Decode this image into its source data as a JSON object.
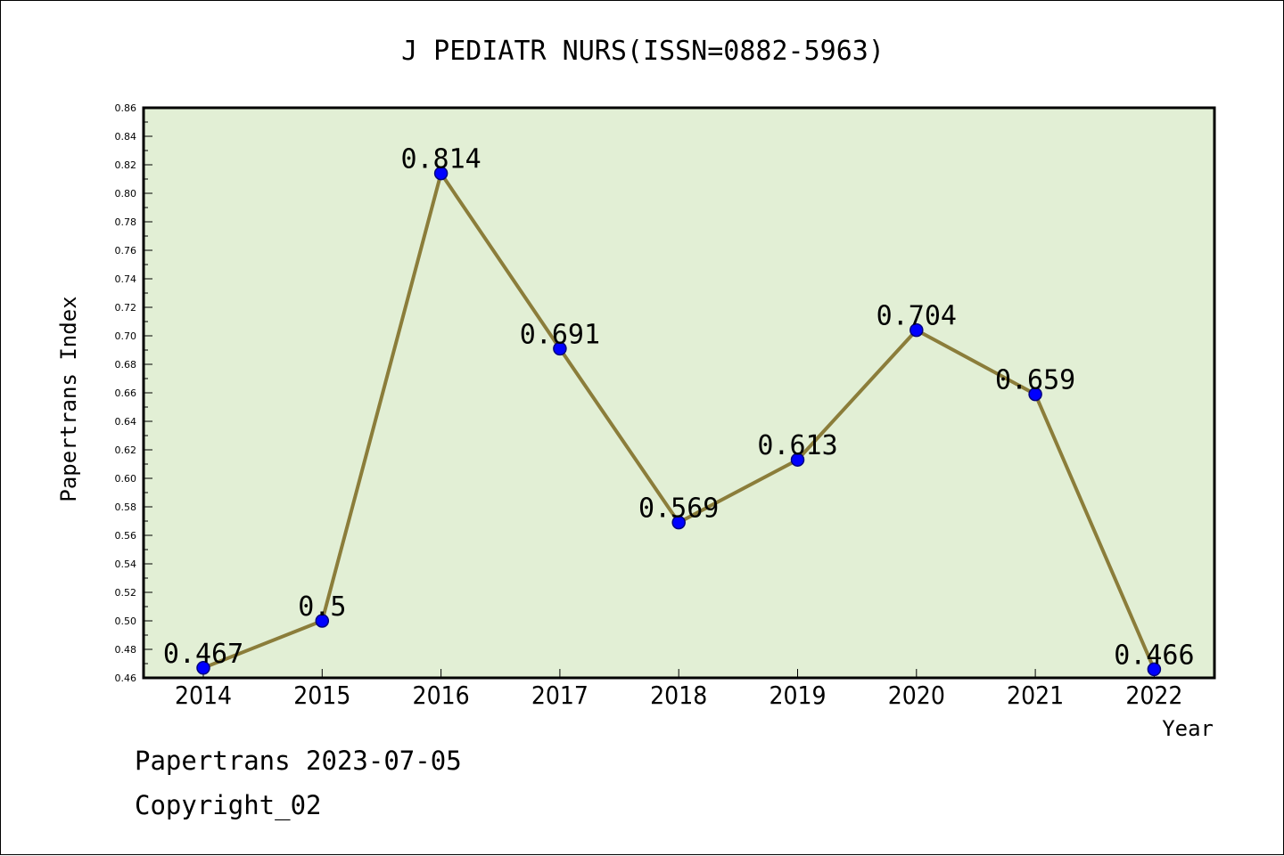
{
  "chart_data": {
    "type": "line",
    "title": "J PEDIATR NURS(ISSN=0882-5963)",
    "xlabel": "Year",
    "ylabel": "Papertrans Index",
    "categories": [
      "2014",
      "2015",
      "2016",
      "2017",
      "2018",
      "2019",
      "2020",
      "2021",
      "2022"
    ],
    "values": [
      0.467,
      0.5,
      0.814,
      0.691,
      0.569,
      0.613,
      0.704,
      0.659,
      0.466
    ],
    "data_labels": [
      "0.467",
      "0.5",
      "0.814",
      "0.691",
      "0.569",
      "0.613",
      "0.704",
      "0.659",
      "0.466"
    ],
    "ylim": [
      0.46,
      0.86
    ],
    "ytick_step": 0.02,
    "grid": false,
    "legend": "none",
    "colors": {
      "plot_background": "#e2efd5",
      "line": "#8b7d3a",
      "marker": "#0000ff",
      "marker_edge": "#000080"
    }
  },
  "footer": {
    "date_line": "Papertrans 2023-07-05",
    "copyright": "Copyright_02"
  }
}
